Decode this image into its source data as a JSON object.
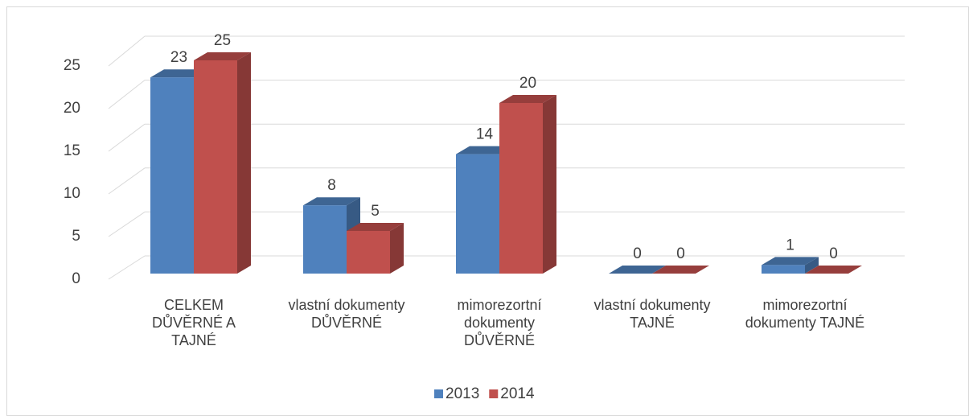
{
  "chart_data": {
    "type": "bar3d",
    "categories": [
      "CELKEM DŮVĚRNÉ A TAJNÉ",
      "vlastní dokumenty DŮVĚRNÉ",
      "mimorezortní dokumenty DŮVĚRNÉ",
      "vlastní dokumenty TAJNÉ",
      "mimorezortní dokumenty TAJNÉ"
    ],
    "series": [
      {
        "name": "2013",
        "color": "#4f81bd",
        "values": [
          23,
          8,
          14,
          0,
          1
        ]
      },
      {
        "name": "2014",
        "color": "#c0504d",
        "values": [
          25,
          5,
          20,
          0,
          0
        ]
      }
    ],
    "ylim": [
      0,
      25
    ],
    "yticks": [
      0,
      5,
      10,
      15,
      20,
      25
    ],
    "grid": true,
    "legend": "bottom"
  }
}
